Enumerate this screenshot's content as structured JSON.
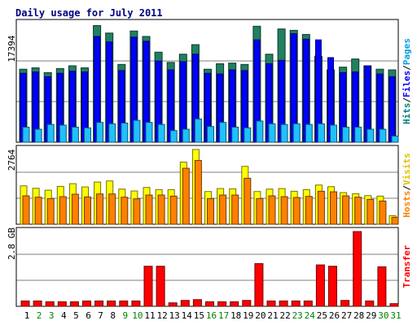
{
  "title": "Daily usage for July 2011",
  "colors": {
    "hits": "#208060",
    "files": "#0000ff",
    "pages": "#20c0ff",
    "visits": "#ffff00",
    "sites": "#ff8000",
    "kbytes": "#ff0000",
    "weekday_label": "#000000",
    "weekend_label": "#008000",
    "title": "#000080"
  },
  "panels": {
    "hits": {
      "ymax_label": "17394",
      "legend": [
        "Hits",
        "Files",
        "Pages"
      ],
      "legend_colors": [
        "#008080",
        "#0000ff",
        "#00c0ff"
      ]
    },
    "visits": {
      "ymax_label": "2764",
      "legend": [
        "Hosts",
        "Visits"
      ],
      "legend_colors": [
        "#ff8000",
        "#ffff00"
      ]
    },
    "transfer": {
      "ymax_label": "2.8 GB",
      "legend": [
        "Transfer"
      ],
      "legend_colors": [
        "#ff0000"
      ]
    }
  },
  "chart_data": [
    {
      "type": "bar",
      "title": "Daily usage for July 2011",
      "categories": [
        "1",
        "2",
        "3",
        "4",
        "5",
        "6",
        "7",
        "8",
        "9",
        "10",
        "11",
        "12",
        "13",
        "14",
        "15",
        "16",
        "17",
        "18",
        "19",
        "20",
        "21",
        "22",
        "23",
        "24",
        "25",
        "26",
        "27",
        "28",
        "29",
        "30",
        "31"
      ],
      "weekend": [
        false,
        true,
        true,
        false,
        false,
        false,
        false,
        false,
        true,
        true,
        false,
        false,
        false,
        false,
        false,
        true,
        true,
        false,
        false,
        false,
        false,
        false,
        true,
        true,
        false,
        false,
        false,
        false,
        false,
        true,
        true
      ],
      "ylim": [
        0,
        17394
      ],
      "series": [
        {
          "name": "Hits",
          "values": [
            10700,
            10900,
            10200,
            10800,
            11200,
            10900,
            17100,
            16000,
            11400,
            16300,
            15500,
            13200,
            11700,
            12900,
            14300,
            10700,
            11500,
            11600,
            11400,
            17000,
            12900,
            16600,
            16400,
            15800,
            12600,
            10600,
            11000,
            12200,
            11200,
            10700,
            10600
          ]
        },
        {
          "name": "Files",
          "values": [
            10100,
            10300,
            9600,
            10100,
            10400,
            10300,
            15500,
            14700,
            10500,
            15400,
            14800,
            11900,
            10600,
            11800,
            12900,
            10100,
            10000,
            10600,
            10500,
            15000,
            11500,
            12000,
            15900,
            15100,
            15000,
            12400,
            10200,
            10300,
            11200,
            10000,
            9600
          ]
        },
        {
          "name": "Pages",
          "values": [
            2200,
            1900,
            2600,
            2500,
            2200,
            2100,
            2900,
            2700,
            2800,
            3200,
            2900,
            2600,
            1700,
            1900,
            3400,
            2300,
            2900,
            2200,
            2100,
            3100,
            2700,
            2600,
            2700,
            2600,
            2700,
            2500,
            2200,
            2200,
            1900,
            1900,
            900
          ]
        }
      ]
    },
    {
      "type": "bar",
      "categories": [
        "1",
        "2",
        "3",
        "4",
        "5",
        "6",
        "7",
        "8",
        "9",
        "10",
        "11",
        "12",
        "13",
        "14",
        "15",
        "16",
        "17",
        "18",
        "19",
        "20",
        "21",
        "22",
        "23",
        "24",
        "25",
        "26",
        "27",
        "28",
        "29",
        "30",
        "31"
      ],
      "ylim": [
        0,
        2764
      ],
      "series": [
        {
          "name": "Visits",
          "values": [
            1420,
            1330,
            1260,
            1400,
            1500,
            1380,
            1560,
            1600,
            1300,
            1230,
            1360,
            1280,
            1280,
            2300,
            2764,
            1210,
            1320,
            1310,
            2140,
            1210,
            1300,
            1320,
            1220,
            1280,
            1450,
            1390,
            1170,
            1130,
            1060,
            1040,
            320
          ]
        },
        {
          "name": "Hosts",
          "values": [
            1050,
            1000,
            950,
            1020,
            1110,
            1010,
            1120,
            1120,
            1000,
            940,
            1080,
            1080,
            1040,
            2070,
            2360,
            950,
            1080,
            1080,
            1700,
            950,
            1050,
            1020,
            990,
            1030,
            1220,
            1200,
            1050,
            1000,
            920,
            860,
            260
          ]
        }
      ]
    },
    {
      "type": "bar",
      "categories": [
        "1",
        "2",
        "3",
        "4",
        "5",
        "6",
        "7",
        "8",
        "9",
        "10",
        "11",
        "12",
        "13",
        "14",
        "15",
        "16",
        "17",
        "18",
        "19",
        "20",
        "21",
        "22",
        "23",
        "24",
        "25",
        "26",
        "27",
        "28",
        "29",
        "30",
        "31"
      ],
      "ylim": [
        0,
        2.8
      ],
      "series": [
        {
          "name": "Transfer",
          "values": [
            0.2,
            0.2,
            0.17,
            0.17,
            0.17,
            0.2,
            0.2,
            0.2,
            0.2,
            0.2,
            1.5,
            1.5,
            0.13,
            0.22,
            0.25,
            0.17,
            0.17,
            0.17,
            0.22,
            1.6,
            0.2,
            0.2,
            0.2,
            0.2,
            1.55,
            1.5,
            0.22,
            2.8,
            0.2,
            1.48,
            0.1
          ]
        }
      ]
    }
  ]
}
